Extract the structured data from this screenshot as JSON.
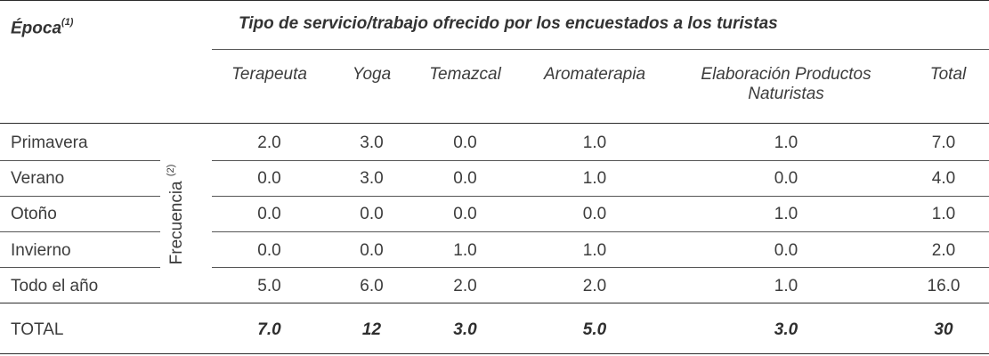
{
  "header": {
    "epoca_label": "Época",
    "epoca_sup": "(1)",
    "main_title": "Tipo de servicio/trabajo ofrecido por los encuestados a los turistas"
  },
  "columns": [
    {
      "label": "Terapeuta"
    },
    {
      "label": "Yoga"
    },
    {
      "label": "Temazcal"
    },
    {
      "label": "Aromaterapia"
    },
    {
      "label": "Elaboración Productos Naturistas"
    },
    {
      "label": "Total"
    }
  ],
  "side_label": {
    "text": "Frecuencia",
    "sup": "(2)"
  },
  "rows": [
    {
      "label": "Primavera",
      "values": [
        "2.0",
        "3.0",
        "0.0",
        "1.0",
        "1.0",
        "7.0"
      ]
    },
    {
      "label": "Verano",
      "values": [
        "0.0",
        "3.0",
        "0.0",
        "1.0",
        "0.0",
        "4.0"
      ]
    },
    {
      "label": "Otoño",
      "values": [
        "0.0",
        "0.0",
        "0.0",
        "0.0",
        "1.0",
        "1.0"
      ]
    },
    {
      "label": "Invierno",
      "values": [
        "0.0",
        "0.0",
        "1.0",
        "1.0",
        "0.0",
        "2.0"
      ]
    },
    {
      "label": "Todo el año",
      "values": [
        "5.0",
        "6.0",
        "2.0",
        "2.0",
        "1.0",
        "16.0"
      ]
    }
  ],
  "total_row": {
    "label": "TOTAL",
    "values": [
      "7.0",
      "12",
      "3.0",
      "5.0",
      "3.0",
      "30"
    ]
  }
}
